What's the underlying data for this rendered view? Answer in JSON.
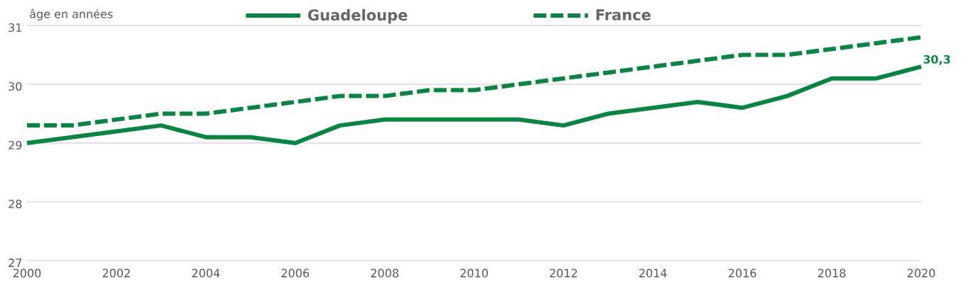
{
  "chart_data": {
    "type": "line",
    "ylabel": "âge en années",
    "x": [
      2000,
      2001,
      2002,
      2003,
      2004,
      2005,
      2006,
      2007,
      2008,
      2009,
      2010,
      2011,
      2012,
      2013,
      2014,
      2015,
      2016,
      2017,
      2018,
      2019,
      2020
    ],
    "series": [
      {
        "name": "Guadeloupe",
        "color": "#0a8443",
        "line_style": "solid",
        "values": [
          29.0,
          29.1,
          29.2,
          29.3,
          29.1,
          29.1,
          29.0,
          29.3,
          29.4,
          29.4,
          29.4,
          29.4,
          29.3,
          29.5,
          29.6,
          29.7,
          29.6,
          29.8,
          30.1,
          30.1,
          30.3
        ],
        "value_labels": [
          null,
          null,
          null,
          null,
          null,
          null,
          null,
          null,
          null,
          null,
          null,
          null,
          null,
          null,
          null,
          null,
          null,
          null,
          null,
          null,
          "30,3"
        ]
      },
      {
        "name": "France",
        "color": "#0a8443",
        "line_style": "dashed",
        "values": [
          29.3,
          29.3,
          29.4,
          29.5,
          29.5,
          29.6,
          29.7,
          29.8,
          29.8,
          29.9,
          29.9,
          30.0,
          30.1,
          30.2,
          30.3,
          30.4,
          30.5,
          30.5,
          30.6,
          30.7,
          30.8
        ]
      }
    ],
    "xlim": [
      2000,
      2020
    ],
    "ylim": [
      27,
      31
    ],
    "xticks": [
      2000,
      2002,
      2004,
      2006,
      2008,
      2010,
      2012,
      2014,
      2016,
      2018,
      2020
    ],
    "yticks": [
      27,
      28,
      29,
      30,
      31
    ],
    "grid": "y",
    "legend": "top"
  }
}
